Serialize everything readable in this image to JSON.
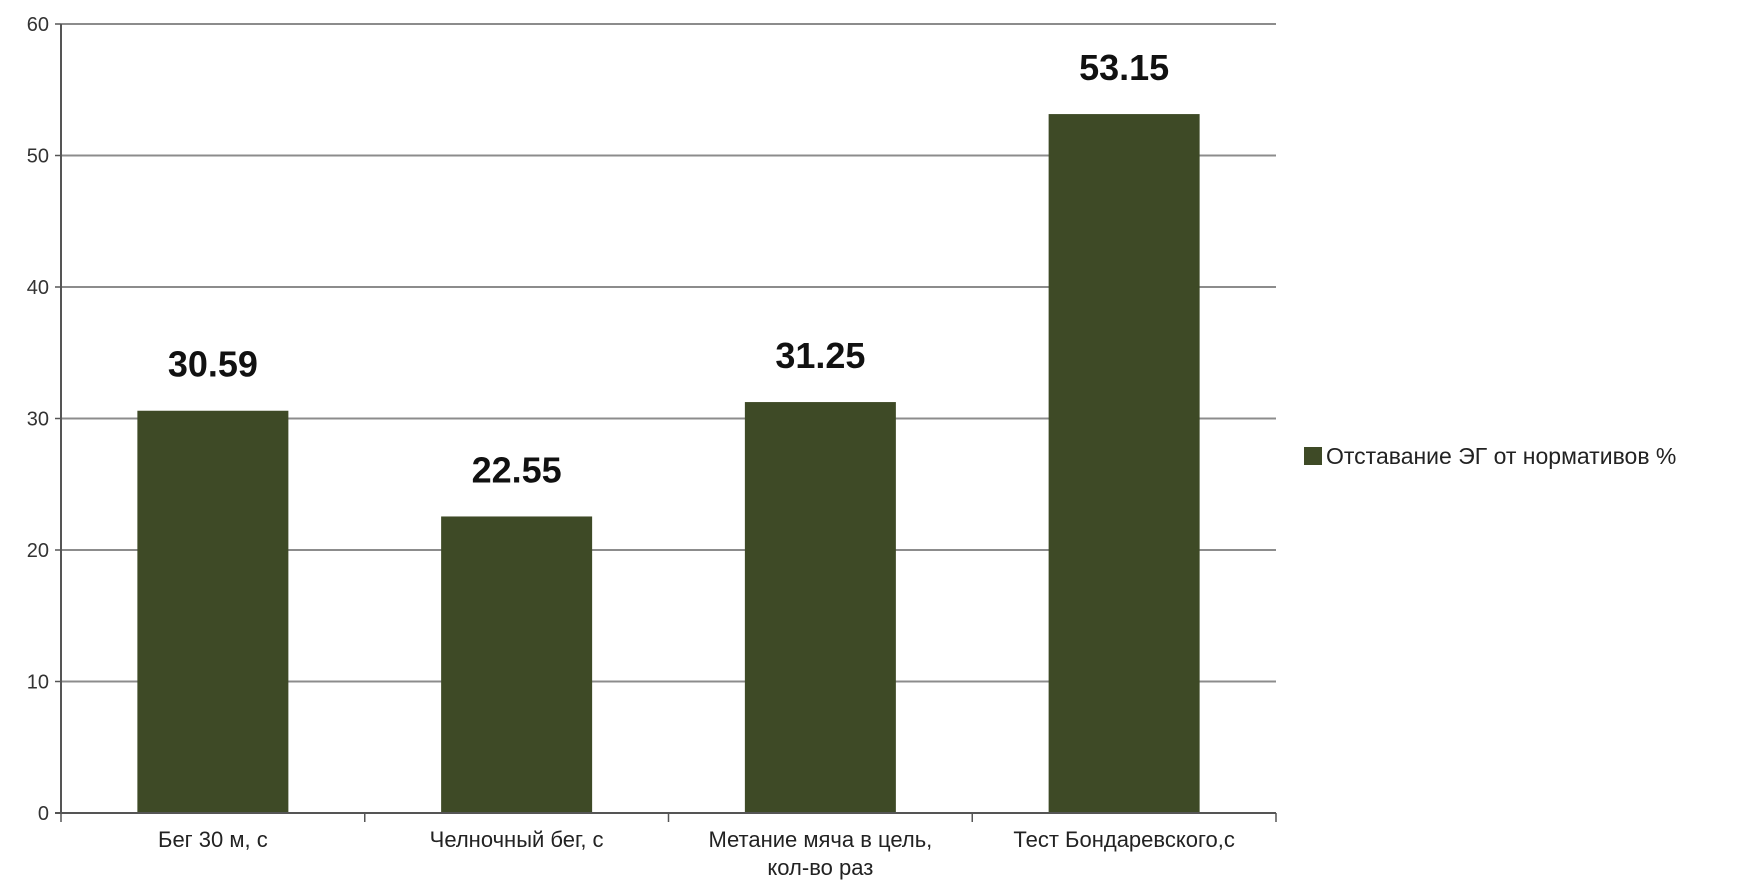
{
  "chart_data": {
    "type": "bar",
    "title": "",
    "xlabel": "",
    "ylabel": "",
    "categories": [
      [
        "Бег 30 м, с"
      ],
      [
        "Челночный бег, с"
      ],
      [
        "Метание мяча в цель,",
        "кол-во раз"
      ],
      [
        "Тест Бондаревского,с"
      ]
    ],
    "series": [
      {
        "name": "Отставание ЭГ от нормативов %",
        "values": [
          30.59,
          22.55,
          31.25,
          53.15
        ],
        "value_labels": [
          "30.59",
          "22.55",
          "31.25",
          "53.15"
        ],
        "color": "#3e4a26"
      }
    ],
    "ylim": [
      0,
      60
    ],
    "yticks": [
      "0",
      "10",
      "20",
      "30",
      "40",
      "50",
      "60"
    ],
    "grid": true,
    "legend": "right"
  }
}
